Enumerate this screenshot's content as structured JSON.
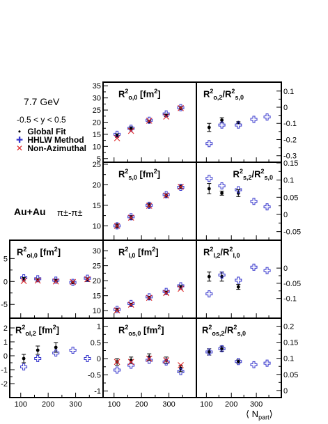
{
  "info": {
    "energy": "7.7 GeV",
    "rapidity": "-0.5 < y < 0.5",
    "system": "Au+Au",
    "pair": "π±-π±",
    "xlabel_left": "⟨ N",
    "xlabel_sub": "part",
    "xlabel_right": "⟩"
  },
  "legend": [
    {
      "label": "Global Fit",
      "marker": "dot",
      "color": "#000000",
      "symbol": "•"
    },
    {
      "label": "HHLW Method",
      "marker": "cross",
      "color": "#3333cc",
      "symbol": "✚"
    },
    {
      "label": "Non-Azimuthal",
      "marker": "x",
      "color": "#dd2222",
      "symbol": "✕"
    }
  ],
  "x_ticks": [
    100,
    200,
    300
  ],
  "x_tick_labels": [
    "100",
    "200",
    "300"
  ],
  "chart_data": [
    {
      "id": "ro0",
      "type": "scatter",
      "title_html": "R<sup>2</sup><sub>o,0</sub> [fm<sup>2</sup>]",
      "xlim": [
        60,
        400
      ],
      "ylim": [
        3.5,
        36.5
      ],
      "y_ticks": [
        5,
        10,
        15,
        20,
        25,
        30,
        35
      ],
      "y_tick_labels": [
        "5",
        "10",
        "15",
        "20",
        "25",
        "30",
        "35"
      ],
      "y_axis_side": "left",
      "series": [
        {
          "marker": "dot",
          "points": [
            [
              111,
              14.5,
              0.7
            ],
            [
              162,
              17.5,
              0.6
            ],
            [
              228,
              20.3,
              0.5
            ],
            [
              290,
              22.8,
              0.5
            ],
            [
              343,
              25.8,
              0.6
            ]
          ]
        },
        {
          "marker": "cross",
          "points": [
            [
              111,
              15.0
            ],
            [
              162,
              17.5
            ],
            [
              228,
              20.8
            ],
            [
              290,
              23.4
            ],
            [
              343,
              26.0
            ]
          ]
        },
        {
          "marker": "x",
          "points": [
            [
              111,
              13.4
            ],
            [
              162,
              16.4
            ],
            [
              228,
              20.6
            ],
            [
              290,
              22.3
            ],
            [
              343,
              25.8
            ]
          ]
        }
      ]
    },
    {
      "id": "ro2",
      "type": "scatter",
      "title_html": "R<sup>2</sup><sub>o,2</sub>/R<sup>2</sup><sub>s,0</sub>",
      "xlim": [
        60,
        400
      ],
      "ylim": [
        -0.34,
        0.155
      ],
      "y_ticks": [
        -0.3,
        -0.2,
        -0.1,
        0,
        0.1
      ],
      "y_tick_labels": [
        "-0.3",
        "-0.2",
        "-0.1",
        "0",
        "0.1"
      ],
      "y_axis_side": "right",
      "series": [
        {
          "marker": "dot",
          "points": [
            [
              111,
              -0.125,
              0.025
            ],
            [
              162,
              -0.08,
              0.015
            ],
            [
              228,
              -0.095,
              0.005
            ]
          ]
        },
        {
          "marker": "cross",
          "points": [
            [
              111,
              -0.225
            ],
            [
              162,
              -0.11
            ],
            [
              228,
              -0.11
            ],
            [
              290,
              -0.075
            ],
            [
              343,
              -0.06
            ]
          ]
        }
      ]
    },
    {
      "id": "rs0",
      "type": "scatter",
      "title_html": "R<sup>2</sup><sub>s,0</sub> [fm<sup>2</sup>]",
      "xlim": [
        60,
        400
      ],
      "ylim": [
        6.5,
        25.5
      ],
      "y_ticks": [
        10,
        15,
        20,
        25
      ],
      "y_tick_labels": [
        "10",
        "15",
        "20",
        "25"
      ],
      "y_axis_side": "left",
      "series": [
        {
          "marker": "dot",
          "points": [
            [
              111,
              10.0,
              0.5
            ],
            [
              162,
              12.0,
              0.5
            ],
            [
              228,
              15.0,
              0.5
            ],
            [
              290,
              17.4,
              0.4
            ],
            [
              343,
              19.5,
              0.4
            ]
          ]
        },
        {
          "marker": "cross",
          "points": [
            [
              111,
              10.0
            ],
            [
              162,
              12.2
            ],
            [
              228,
              15.0
            ],
            [
              290,
              17.6
            ],
            [
              343,
              19.4
            ]
          ]
        },
        {
          "marker": "x",
          "points": [
            [
              111,
              10.0
            ],
            [
              162,
              12.0
            ],
            [
              228,
              14.9
            ],
            [
              290,
              17.4
            ],
            [
              343,
              19.5
            ]
          ]
        }
      ]
    },
    {
      "id": "rs2",
      "type": "scatter",
      "title_html": "R<sup>2</sup><sub>s,2</sub>/R<sup>2</sup><sub>s,0</sub>",
      "xlim": [
        60,
        400
      ],
      "ylim": [
        -0.075,
        0.152
      ],
      "y_ticks": [
        -0.05,
        0,
        0.05,
        0.1,
        0.15
      ],
      "y_tick_labels": [
        "-0.05",
        "0",
        "0.05",
        "0.1",
        "0.15"
      ],
      "y_axis_side": "right",
      "series": [
        {
          "marker": "dot",
          "points": [
            [
              111,
              0.075,
              0.015
            ],
            [
              162,
              0.062,
              0.006
            ],
            [
              228,
              0.062,
              0.01
            ]
          ]
        },
        {
          "marker": "cross",
          "points": [
            [
              111,
              0.105
            ],
            [
              162,
              0.083
            ],
            [
              228,
              0.072
            ],
            [
              290,
              0.038
            ],
            [
              343,
              0.022
            ]
          ]
        }
      ]
    },
    {
      "id": "rl0",
      "type": "scatter",
      "title_html": "R<sup>2</sup><sub>l,0</sub> [fm<sup>2</sup>]",
      "xlim": [
        60,
        400
      ],
      "ylim": [
        7.5,
        33.5
      ],
      "y_ticks": [
        10,
        15,
        20,
        25,
        30
      ],
      "y_tick_labels": [
        "10",
        "15",
        "20",
        "25",
        "30"
      ],
      "y_axis_side": "left",
      "series": [
        {
          "marker": "dot",
          "points": [
            [
              111,
              10.3,
              0.5
            ],
            [
              162,
              12.0,
              0.5
            ],
            [
              228,
              14.3,
              0.5
            ],
            [
              290,
              16.0,
              0.5
            ],
            [
              343,
              17.8,
              0.6
            ]
          ]
        },
        {
          "marker": "cross",
          "points": [
            [
              111,
              10.4
            ],
            [
              162,
              12.4
            ],
            [
              228,
              14.6
            ],
            [
              290,
              16.4
            ],
            [
              343,
              18.3
            ]
          ]
        },
        {
          "marker": "x",
          "points": [
            [
              111,
              10.1
            ],
            [
              162,
              12.0
            ],
            [
              228,
              14.3
            ],
            [
              290,
              15.9
            ],
            [
              343,
              17.3
            ]
          ]
        }
      ]
    },
    {
      "id": "rl2",
      "type": "scatter",
      "title_html": "R<sup>2</sup><sub>l,2</sub>/R<sup>2</sup><sub>l,0</sub>",
      "xlim": [
        60,
        400
      ],
      "ylim": [
        -0.165,
        0.092
      ],
      "y_ticks": [
        -0.1,
        -0.05,
        0
      ],
      "y_tick_labels": [
        "-0.1",
        "-0.05",
        "0"
      ],
      "y_axis_side": "right",
      "series": [
        {
          "marker": "dot",
          "points": [
            [
              111,
              -0.028,
              0.015
            ],
            [
              162,
              -0.028,
              0.015
            ],
            [
              228,
              -0.062,
              0.008
            ]
          ]
        },
        {
          "marker": "cross",
          "points": [
            [
              111,
              -0.085
            ],
            [
              162,
              -0.023
            ],
            [
              228,
              -0.04
            ],
            [
              290,
              0.003
            ],
            [
              343,
              -0.008
            ]
          ]
        }
      ]
    },
    {
      "id": "rol0",
      "type": "scatter",
      "title_html": "R<sup>2</sup><sub>ol,0</sub> [fm<sup>2</sup>]",
      "xlim": [
        60,
        400
      ],
      "ylim": [
        -8.0,
        9.0
      ],
      "y_ticks": [
        -5,
        0,
        5
      ],
      "y_tick_labels": [
        "-5",
        "0",
        "5"
      ],
      "y_axis_side": "left",
      "series": [
        {
          "marker": "dot",
          "points": [
            [
              111,
              0.5,
              0.4
            ],
            [
              162,
              0.3,
              0.3
            ],
            [
              228,
              0.2,
              0.3
            ],
            [
              290,
              -0.2,
              0.3
            ],
            [
              343,
              0.4,
              0.4
            ]
          ]
        },
        {
          "marker": "cross",
          "points": [
            [
              111,
              0.8
            ],
            [
              162,
              0.6
            ],
            [
              228,
              0.3
            ],
            [
              290,
              -0.2
            ],
            [
              343,
              0.7
            ]
          ]
        },
        {
          "marker": "x",
          "points": [
            [
              111,
              0.1
            ],
            [
              162,
              0.2
            ],
            [
              228,
              0.0
            ],
            [
              290,
              -0.1
            ],
            [
              343,
              0.5
            ]
          ]
        }
      ]
    },
    {
      "id": "rol2",
      "type": "scatter",
      "title_html": "R<sup>2</sup><sub>ol,2</sub> [fm<sup>2</sup>]",
      "xlim": [
        60,
        400
      ],
      "ylim": [
        -3.0,
        2.7
      ],
      "y_ticks": [
        -2,
        -1,
        0,
        1,
        2
      ],
      "y_tick_labels": [
        "-2",
        "-1",
        "0",
        "1",
        "2"
      ],
      "y_axis_side": "left",
      "series": [
        {
          "marker": "dot",
          "points": [
            [
              111,
              -0.2,
              0.3
            ],
            [
              162,
              0.4,
              0.3
            ],
            [
              228,
              0.6,
              0.35
            ]
          ]
        },
        {
          "marker": "cross",
          "points": [
            [
              111,
              -0.8
            ],
            [
              162,
              -0.2
            ],
            [
              228,
              0.2
            ],
            [
              290,
              0.4
            ],
            [
              343,
              -0.2
            ]
          ]
        }
      ]
    },
    {
      "id": "ros0",
      "type": "scatter",
      "title_html": "R<sup>2</sup><sub>os,0</sub> [fm<sup>2</sup>]",
      "xlim": [
        60,
        400
      ],
      "ylim": [
        -1.2,
        1.25
      ],
      "y_ticks": [
        -1,
        -0.5,
        0,
        0.5,
        1
      ],
      "y_tick_labels": [
        "-1",
        "-0.5",
        "0",
        "0.5",
        "1"
      ],
      "y_axis_side": "left",
      "series": [
        {
          "marker": "dot",
          "points": [
            [
              111,
              -0.1,
              0.1
            ],
            [
              162,
              -0.05,
              0.1
            ],
            [
              228,
              0.05,
              0.1
            ],
            [
              290,
              -0.05,
              0.1
            ],
            [
              343,
              -0.3,
              0.1
            ]
          ]
        },
        {
          "marker": "cross",
          "points": [
            [
              111,
              -0.35
            ],
            [
              162,
              -0.2
            ],
            [
              228,
              -0.05
            ],
            [
              290,
              -0.1
            ],
            [
              343,
              -0.4
            ]
          ]
        },
        {
          "marker": "x",
          "points": [
            [
              111,
              -0.1
            ],
            [
              162,
              -0.1
            ],
            [
              228,
              0.0
            ],
            [
              290,
              -0.05
            ],
            [
              343,
              -0.2
            ]
          ]
        }
      ]
    },
    {
      "id": "ros2",
      "type": "scatter",
      "title_html": "R<sup>2</sup><sub>os,2</sub>/R<sup>2</sup><sub>s,0</sub>",
      "xlim": [
        60,
        400
      ],
      "ylim": [
        -0.022,
        0.225
      ],
      "y_ticks": [
        0,
        0.05,
        0.1,
        0.15,
        0.2
      ],
      "y_tick_labels": [
        "0",
        "0.05",
        "0.1",
        "0.15",
        "0.2"
      ],
      "y_axis_side": "right",
      "series": [
        {
          "marker": "dot",
          "points": [
            [
              111,
              0.12,
              0.01
            ],
            [
              162,
              0.13,
              0.008
            ],
            [
              228,
              0.09,
              0.005
            ]
          ]
        },
        {
          "marker": "cross",
          "points": [
            [
              111,
              0.12
            ],
            [
              162,
              0.13
            ],
            [
              228,
              0.09
            ],
            [
              290,
              0.08
            ],
            [
              343,
              0.085
            ]
          ]
        }
      ]
    }
  ]
}
